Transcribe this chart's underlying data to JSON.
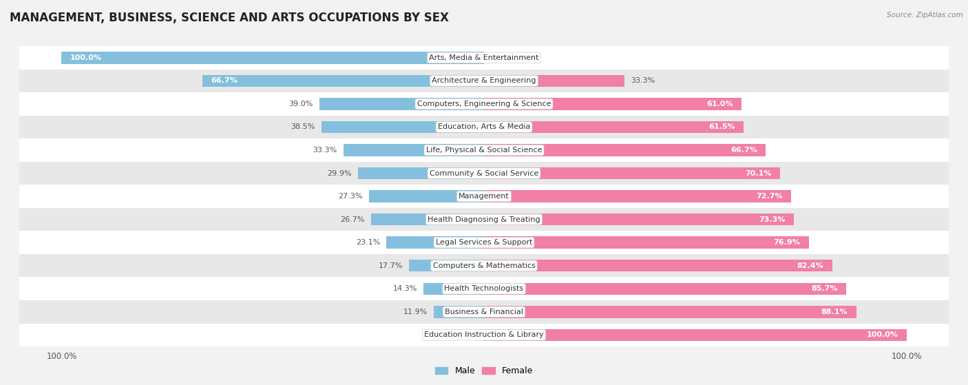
{
  "title": "MANAGEMENT, BUSINESS, SCIENCE AND ARTS OCCUPATIONS BY SEX",
  "source": "Source: ZipAtlas.com",
  "categories": [
    "Arts, Media & Entertainment",
    "Architecture & Engineering",
    "Computers, Engineering & Science",
    "Education, Arts & Media",
    "Life, Physical & Social Science",
    "Community & Social Service",
    "Management",
    "Health Diagnosing & Treating",
    "Legal Services & Support",
    "Computers & Mathematics",
    "Health Technologists",
    "Business & Financial",
    "Education Instruction & Library"
  ],
  "male_pct": [
    100.0,
    66.7,
    39.0,
    38.5,
    33.3,
    29.9,
    27.3,
    26.7,
    23.1,
    17.7,
    14.3,
    11.9,
    0.0
  ],
  "female_pct": [
    0.0,
    33.3,
    61.0,
    61.5,
    66.7,
    70.1,
    72.7,
    73.3,
    76.9,
    82.4,
    85.7,
    88.1,
    100.0
  ],
  "male_color": "#85bfde",
  "female_color": "#f17fa8",
  "bg_color": "#f2f2f2",
  "row_even_color": "#ffffff",
  "row_odd_color": "#e8e8e8",
  "title_fontsize": 12,
  "label_fontsize": 8,
  "pct_fontsize": 8,
  "bar_height": 0.52,
  "xlim": 110
}
